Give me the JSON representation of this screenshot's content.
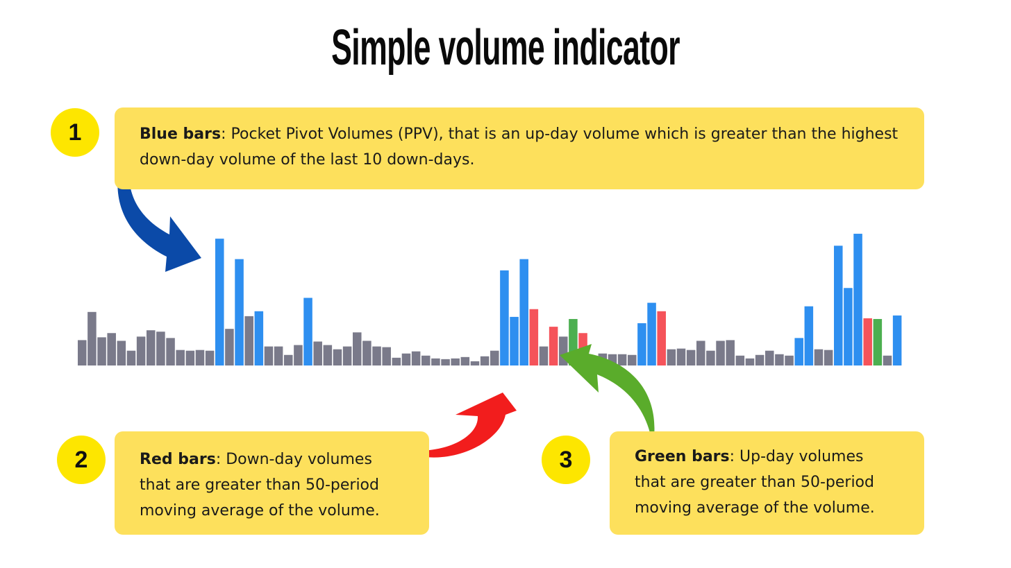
{
  "title": "Simple volume indicator",
  "colors": {
    "blue": "#2e8ff0",
    "red": "#f5535a",
    "green": "#4caf50",
    "gray": "#7a7a8a",
    "callout": "#fde05c",
    "badge": "#fde600"
  },
  "callouts": [
    {
      "number": "1",
      "label": "Blue bars",
      "text": ": Pocket Pivot Volumes (PPV), that is an up-day volume which is greater than the highest down-day volume of the last 10 down-days."
    },
    {
      "number": "2",
      "label": "Red bars",
      "text": ": Down-day volumes that are greater than 50-period moving average of the volume."
    },
    {
      "number": "3",
      "label": "Green bars",
      "text": ": Up-day volumes that are greater than 50-period moving average of the volume."
    }
  ],
  "arrows": [
    {
      "name": "blue-arrow",
      "color": "#0b4aa8"
    },
    {
      "name": "red-arrow",
      "color": "#f21d1d"
    },
    {
      "name": "green-arrow",
      "color": "#5aac2b"
    }
  ],
  "chart_data": {
    "type": "bar",
    "title": "",
    "xlabel": "",
    "ylabel": "",
    "ylim": [
      0,
      190
    ],
    "legend": [
      "gray",
      "blue",
      "red",
      "green"
    ],
    "values": [
      36,
      76,
      40,
      46,
      35,
      21,
      41,
      50,
      48,
      39,
      22,
      21,
      22,
      21,
      180,
      52,
      151,
      70,
      77,
      27,
      27,
      15,
      29,
      96,
      34,
      29,
      23,
      27,
      47,
      35,
      27,
      26,
      11,
      17,
      20,
      14,
      10,
      9,
      10,
      12,
      6,
      13,
      21,
      135,
      69,
      151,
      80,
      27,
      55,
      41,
      66,
      46,
      10,
      17,
      16,
      16,
      15,
      60,
      89,
      77,
      23,
      24,
      22,
      35,
      21,
      35,
      36,
      14,
      10,
      15,
      21,
      16,
      14,
      39,
      84,
      23,
      22,
      170,
      110,
      187,
      67,
      66,
      14,
      71
    ],
    "colors": [
      "gray",
      "gray",
      "gray",
      "gray",
      "gray",
      "gray",
      "gray",
      "gray",
      "gray",
      "gray",
      "gray",
      "gray",
      "gray",
      "gray",
      "blue",
      "gray",
      "blue",
      "gray",
      "blue",
      "gray",
      "gray",
      "gray",
      "gray",
      "blue",
      "gray",
      "gray",
      "gray",
      "gray",
      "gray",
      "gray",
      "gray",
      "gray",
      "gray",
      "gray",
      "gray",
      "gray",
      "gray",
      "gray",
      "gray",
      "gray",
      "gray",
      "gray",
      "gray",
      "blue",
      "blue",
      "blue",
      "red",
      "gray",
      "red",
      "gray",
      "green",
      "red",
      "gray",
      "gray",
      "gray",
      "gray",
      "gray",
      "blue",
      "blue",
      "red",
      "gray",
      "gray",
      "gray",
      "gray",
      "gray",
      "gray",
      "gray",
      "gray",
      "gray",
      "gray",
      "gray",
      "gray",
      "gray",
      "blue",
      "blue",
      "gray",
      "gray",
      "blue",
      "blue",
      "blue",
      "red",
      "green",
      "gray",
      "blue"
    ]
  }
}
